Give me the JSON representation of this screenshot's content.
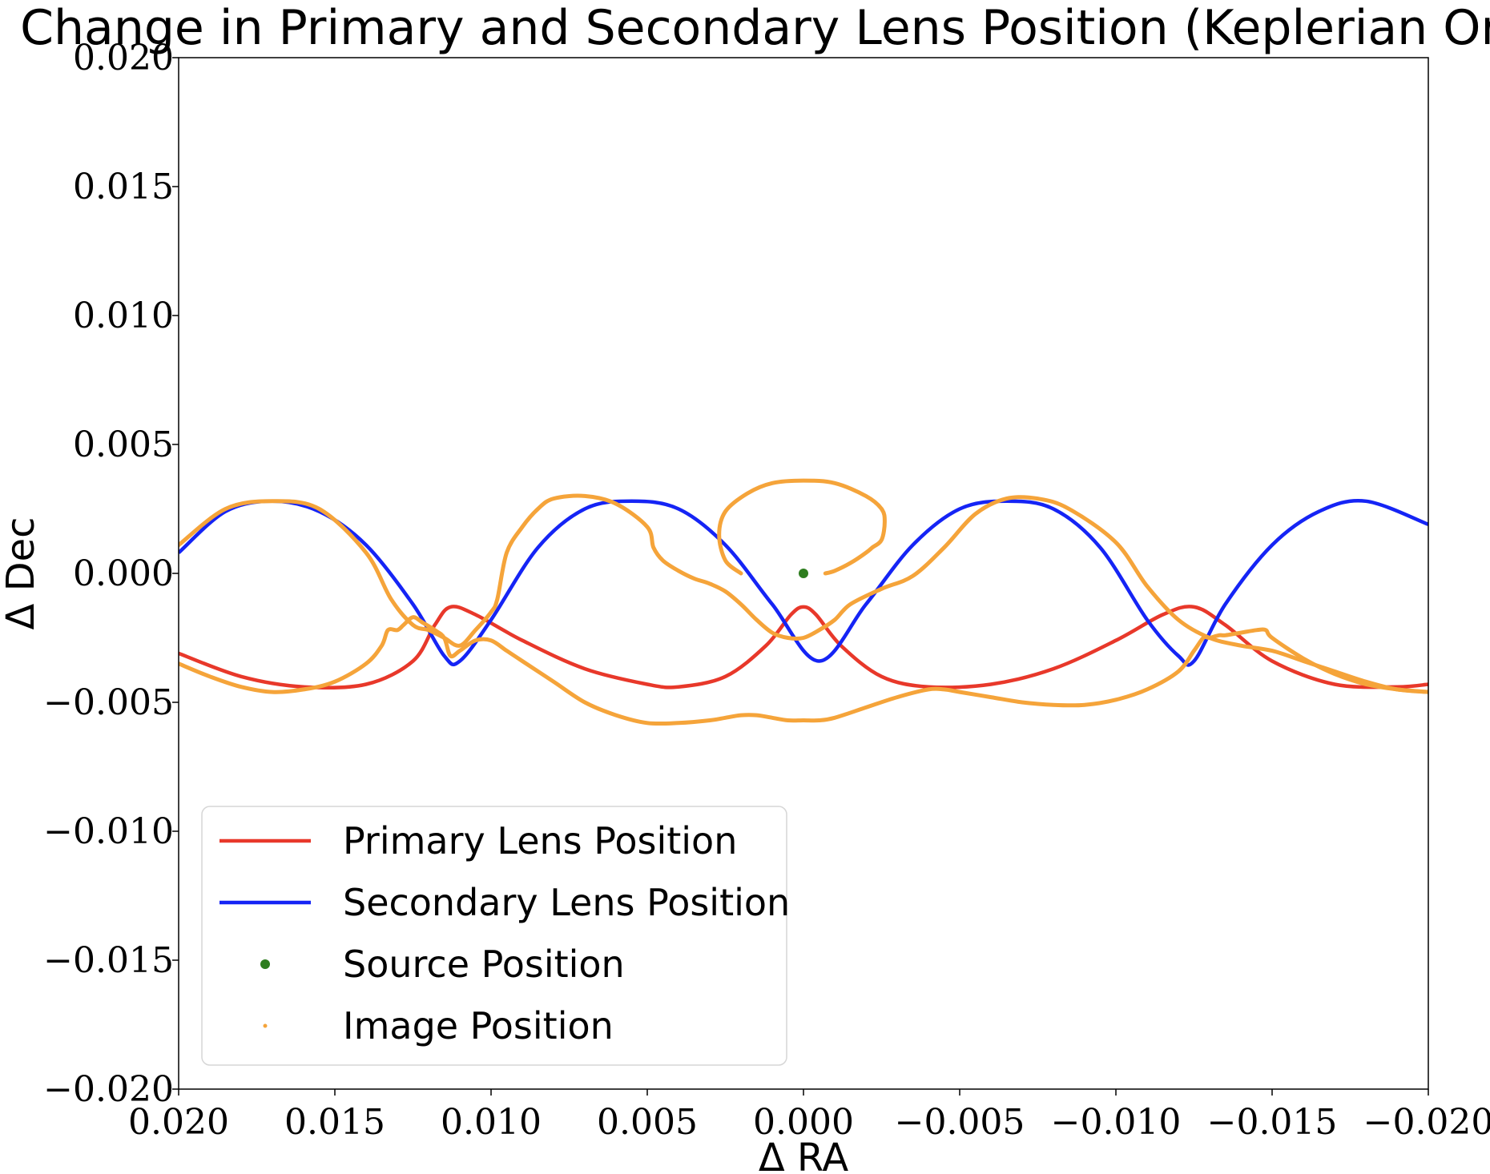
{
  "chart_data": {
    "type": "line",
    "title": "Change in Primary and Secondary Lens Position (Keplerian Orbit)",
    "xlabel": "Δ RA",
    "ylabel": "Δ Dec",
    "xlim": [
      0.02,
      -0.02
    ],
    "ylim": [
      -0.02,
      0.02
    ],
    "x_inverted": true,
    "xticks": [
      0.02,
      0.015,
      0.01,
      0.005,
      0.0,
      -0.005,
      -0.01,
      -0.015,
      -0.02
    ],
    "xtick_labels": [
      "0.020",
      "0.015",
      "0.010",
      "0.005",
      "0.000",
      "−0.005",
      "−0.010",
      "−0.015",
      "−0.020"
    ],
    "yticks": [
      0.02,
      0.015,
      0.01,
      0.005,
      0.0,
      -0.005,
      -0.01,
      -0.015,
      -0.02
    ],
    "ytick_labels": [
      "0.020",
      "0.015",
      "0.010",
      "0.005",
      "0.000",
      "−0.005",
      "−0.010",
      "−0.015",
      "−0.020"
    ],
    "grid": false,
    "legend_position": "lower-left",
    "series": [
      {
        "name": "Primary Lens Position",
        "color": "#e8382a",
        "style": "line",
        "x": [
          0.02,
          0.018,
          0.016,
          0.014,
          0.0125,
          0.0118,
          0.0113,
          0.0105,
          0.009,
          0.007,
          0.005,
          0.004,
          0.0025,
          0.0012,
          0.0004,
          0.0,
          -0.0004,
          -0.0012,
          -0.0025,
          -0.004,
          -0.006,
          -0.008,
          -0.01,
          -0.0115,
          -0.0125,
          -0.0135,
          -0.015,
          -0.017,
          -0.019,
          -0.02
        ],
        "y": [
          -0.0031,
          -0.004,
          -0.0044,
          -0.0043,
          -0.0034,
          -0.002,
          -0.0013,
          -0.0016,
          -0.0026,
          -0.0037,
          -0.0043,
          -0.0044,
          -0.004,
          -0.0028,
          -0.0016,
          -0.0013,
          -0.0016,
          -0.0028,
          -0.004,
          -0.0044,
          -0.0043,
          -0.0037,
          -0.0026,
          -0.0016,
          -0.0013,
          -0.002,
          -0.0034,
          -0.0043,
          -0.0044,
          -0.0043
        ]
      },
      {
        "name": "Secondary Lens Position",
        "color": "#1524f5",
        "style": "line",
        "x": [
          0.02,
          0.0185,
          0.017,
          0.0155,
          0.014,
          0.0125,
          0.0115,
          0.011,
          0.01,
          0.0085,
          0.007,
          0.0055,
          0.004,
          0.0025,
          0.001,
          -0.0005,
          -0.002,
          -0.0035,
          -0.005,
          -0.0065,
          -0.008,
          -0.0095,
          -0.011,
          -0.012,
          -0.0125,
          -0.0135,
          -0.015,
          -0.0165,
          -0.018,
          -0.02
        ],
        "y": [
          0.0008,
          0.0024,
          0.0028,
          0.0024,
          0.0011,
          -0.0012,
          -0.0032,
          -0.0034,
          -0.0018,
          0.001,
          0.0025,
          0.0028,
          0.0025,
          0.0011,
          -0.0012,
          -0.0034,
          -0.0012,
          0.0011,
          0.0025,
          0.0028,
          0.0025,
          0.001,
          -0.0018,
          -0.0032,
          -0.0034,
          -0.0012,
          0.0011,
          0.0024,
          0.0028,
          0.0019
        ]
      },
      {
        "name": "Source Position",
        "color": "#2e7d1f",
        "style": "marker",
        "x": [
          0.0
        ],
        "y": [
          0.0
        ]
      },
      {
        "name": "Image Position",
        "color": "#f5a43a",
        "style": "dots",
        "paths": [
          {
            "x": [
              0.02,
              0.0185,
              0.017,
              0.0155,
              0.014,
              0.0132,
              0.0125,
              0.012,
              0.0115,
              0.011,
              0.0105,
              0.01,
              0.0098,
              0.0095,
              0.009,
              0.0085,
              0.008,
              0.007,
              0.006,
              0.005,
              0.0048,
              0.0045,
              0.004,
              0.0035,
              0.003,
              0.0025,
              0.002,
              0.0015,
              0.001,
              0.0005,
              0.0,
              -0.0005,
              -0.001,
              -0.0015,
              -0.0025,
              -0.0035,
              -0.0045,
              -0.0055,
              -0.0065,
              -0.0075,
              -0.0085,
              -0.01,
              -0.011,
              -0.012,
              -0.013,
              -0.014,
              -0.015,
              -0.016,
              -0.017,
              -0.018,
              -0.019,
              -0.02
            ],
            "y": [
              0.0011,
              0.0025,
              0.0028,
              0.0025,
              0.0008,
              -0.001,
              -0.002,
              -0.0022,
              -0.0025,
              -0.0028,
              -0.0022,
              -0.0015,
              -0.001,
              0.0008,
              0.0018,
              0.0025,
              0.0029,
              0.003,
              0.0027,
              0.0018,
              0.001,
              0.0005,
              0.0001,
              -0.0002,
              -0.0004,
              -0.0007,
              -0.0012,
              -0.0018,
              -0.0023,
              -0.0025,
              -0.0025,
              -0.0022,
              -0.0018,
              -0.0012,
              -0.0006,
              -0.0001,
              0.001,
              0.0023,
              0.0029,
              0.0029,
              0.0025,
              0.0012,
              -0.0005,
              -0.0018,
              -0.0025,
              -0.0028,
              -0.003,
              -0.0034,
              -0.0038,
              -0.0042,
              -0.0045,
              -0.0046
            ]
          },
          {
            "x": [
              0.02,
              0.019,
              0.018,
              0.017,
              0.016,
              0.015,
              0.014,
              0.0135,
              0.0133,
              0.013,
              0.0128,
              0.0125,
              0.0122,
              0.0118,
              0.0115,
              0.0113,
              0.011,
              0.0105,
              0.01,
              0.0095,
              0.009,
              0.008,
              0.007,
              0.006,
              0.005,
              0.004,
              0.003,
              0.0025,
              0.002,
              0.0015,
              0.001,
              0.0005,
              0.0,
              -0.0005,
              -0.001,
              -0.002,
              -0.003,
              -0.004,
              -0.0045,
              -0.005,
              -0.006,
              -0.007,
              -0.008,
              -0.009,
              -0.01,
              -0.011,
              -0.012,
              -0.0125,
              -0.0128,
              -0.013,
              -0.0133,
              -0.0135,
              -0.014,
              -0.0145,
              -0.0148,
              -0.015,
              -0.016,
              -0.017,
              -0.018,
              -0.019,
              -0.02
            ],
            "y": [
              -0.0035,
              -0.004,
              -0.0044,
              -0.0046,
              -0.0045,
              -0.0042,
              -0.0035,
              -0.0028,
              -0.0022,
              -0.0022,
              -0.002,
              -0.0017,
              -0.0019,
              -0.0022,
              -0.0025,
              -0.0032,
              -0.003,
              -0.0026,
              -0.0026,
              -0.003,
              -0.0034,
              -0.0042,
              -0.005,
              -0.0055,
              -0.0058,
              -0.0058,
              -0.0057,
              -0.0056,
              -0.0055,
              -0.0055,
              -0.0056,
              -0.0057,
              -0.0057,
              -0.0057,
              -0.0056,
              -0.0052,
              -0.0048,
              -0.0045,
              -0.0045,
              -0.0046,
              -0.0048,
              -0.005,
              -0.0051,
              -0.0051,
              -0.0049,
              -0.0045,
              -0.0038,
              -0.003,
              -0.0025,
              -0.0025,
              -0.0024,
              -0.0024,
              -0.0023,
              -0.0022,
              -0.0022,
              -0.0025,
              -0.0033,
              -0.0039,
              -0.0043,
              -0.0045,
              -0.0046
            ]
          },
          {
            "x": [
              0.002,
              0.0025,
              0.0027,
              0.0025,
              0.0018,
              0.001,
              0.0,
              -0.001,
              -0.002,
              -0.0025,
              -0.0026,
              -0.0025,
              -0.0022,
              -0.002,
              -0.0015,
              -0.001,
              -0.0007
            ],
            "y": [
              0.0,
              0.0005,
              0.0015,
              0.0024,
              0.0031,
              0.0035,
              0.0036,
              0.0035,
              0.003,
              0.0025,
              0.002,
              0.0013,
              0.001,
              0.0008,
              0.0004,
              0.0001,
              0.0
            ]
          }
        ]
      }
    ]
  }
}
